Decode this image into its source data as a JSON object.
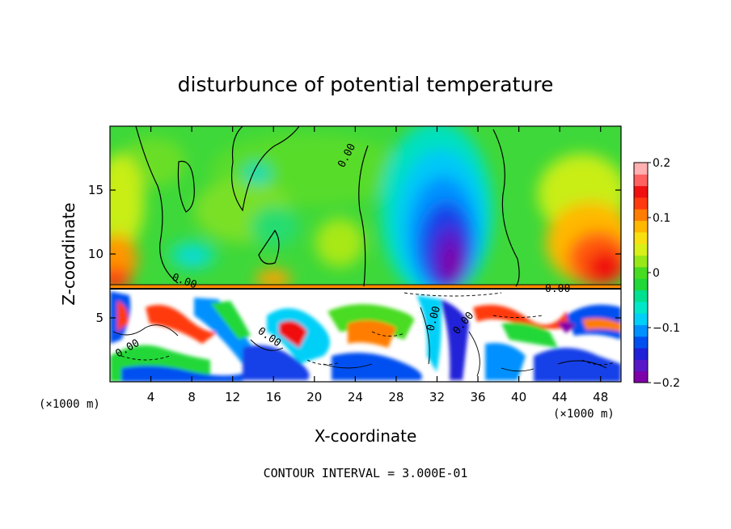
{
  "chart_data": {
    "type": "heatmap",
    "title": "disturbunce of potential temperature",
    "xlabel": "X-coordinate",
    "ylabel": "Z-coordinate",
    "x_unit_label": "(×1000 m)",
    "y_unit_label": "(×1000 m)",
    "xlim": [
      0,
      50
    ],
    "ylim": [
      0,
      20
    ],
    "x_ticks": [
      4,
      8,
      12,
      16,
      20,
      24,
      28,
      32,
      36,
      40,
      44,
      48
    ],
    "x_tick_labels": [
      "4",
      "8",
      "12",
      "16",
      "20",
      "24",
      "28",
      "32",
      "36",
      "40",
      "44",
      "48"
    ],
    "y_ticks": [
      5,
      10,
      15
    ],
    "y_tick_labels": [
      "5",
      "10",
      "15"
    ],
    "colorbar": {
      "min": -0.2,
      "max": 0.2,
      "ticks": [
        0.2,
        0.1,
        0,
        -0.1,
        -0.2
      ],
      "tick_labels": [
        "0.2",
        "0.1",
        "0",
        "−0.1",
        "−0.2"
      ],
      "colors": [
        "#7e00a8",
        "#5a17c8",
        "#2020d8",
        "#0050f0",
        "#0090ff",
        "#00d0f8",
        "#00e8c8",
        "#00e090",
        "#20d838",
        "#48dc20",
        "#98e818",
        "#d8f018",
        "#f8e010",
        "#ffb800",
        "#ff7d00",
        "#ff3a10",
        "#f01010",
        "#ff6060",
        "#ffb0b0"
      ]
    },
    "contour_labels": [
      "0.00",
      "0.00",
      "0.00",
      "0.00",
      "0.00",
      "0.00",
      "0.00"
    ],
    "contour_interval_text": "CONTOUR INTERVAL = 3.000E-01",
    "features": [
      {
        "kind": "cold_anomaly",
        "x": 33,
        "z": 11.5,
        "value": -0.2
      },
      {
        "kind": "warm_anomaly",
        "x": 48,
        "z": 10,
        "value": 0.15
      },
      {
        "kind": "warm_anomaly",
        "x": 0.5,
        "z": 9,
        "value": 0.12
      },
      {
        "kind": "cool_anomaly",
        "x": 11,
        "z": 10,
        "value": -0.06
      },
      {
        "kind": "cool_anomaly",
        "x": 19,
        "z": 16,
        "value": -0.04
      }
    ],
    "grid": false,
    "legend_position": "right"
  }
}
